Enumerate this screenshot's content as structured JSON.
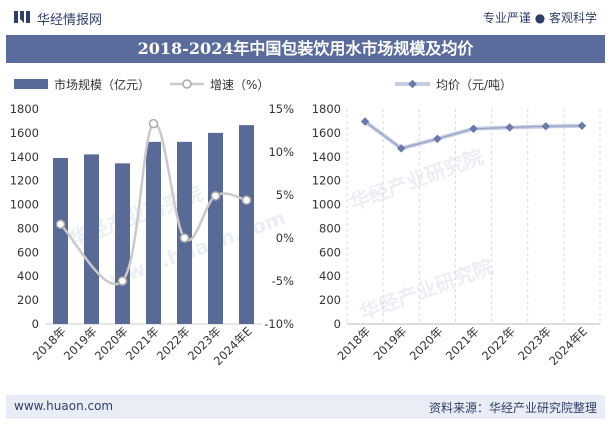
{
  "header": {
    "brand": "华经情报网",
    "slogan": "专业严谨 ● 客观科学"
  },
  "title": "2018-2024年中国包装饮用水市场规模及均价",
  "footer": {
    "url": "www.huaon.com",
    "source": "资料来源：华经产业研究院整理"
  },
  "colors": {
    "bar": "#5a6a96",
    "growth_line": "#c9c9c9",
    "price_line": "#c5cde3",
    "title_bg": "#5a6c9c"
  },
  "chart_data": [
    {
      "type": "bar",
      "categories": [
        "2018年",
        "2019年",
        "2020年",
        "2021年",
        "2022年",
        "2023年",
        "2024年E"
      ],
      "series": [
        {
          "name": "市场规模（亿元）",
          "type": "bar",
          "axis": "left",
          "values": [
            1390,
            1420,
            1345,
            1525,
            1525,
            1600,
            1665
          ]
        },
        {
          "name": "增速（%）",
          "type": "line",
          "axis": "right",
          "values": [
            1.6,
            null,
            -5,
            13.3,
            0,
            4.9,
            4.4
          ]
        }
      ],
      "ylim_left": [
        0,
        1800
      ],
      "yticks_left": [
        "0",
        "200",
        "400",
        "600",
        "800",
        "1000",
        "1200",
        "1400",
        "1600",
        "1800"
      ],
      "ylim_right": [
        -10,
        15
      ],
      "yticks_right": [
        "-10%",
        "-5%",
        "0%",
        "5%",
        "10%",
        "15%"
      ],
      "legend": "top"
    },
    {
      "type": "line",
      "categories": [
        "2018年",
        "2019年",
        "2020年",
        "2021年",
        "2022年",
        "2023年",
        "2024年E"
      ],
      "series": [
        {
          "name": "均价（元/吨）",
          "values": [
            1695,
            1470,
            1550,
            1635,
            1645,
            1655,
            1660
          ]
        }
      ],
      "ylim": [
        0,
        1800
      ],
      "yticks": [
        "0",
        "200",
        "400",
        "600",
        "800",
        "1000",
        "1200",
        "1400",
        "1600",
        "1800"
      ],
      "legend": "top"
    }
  ]
}
